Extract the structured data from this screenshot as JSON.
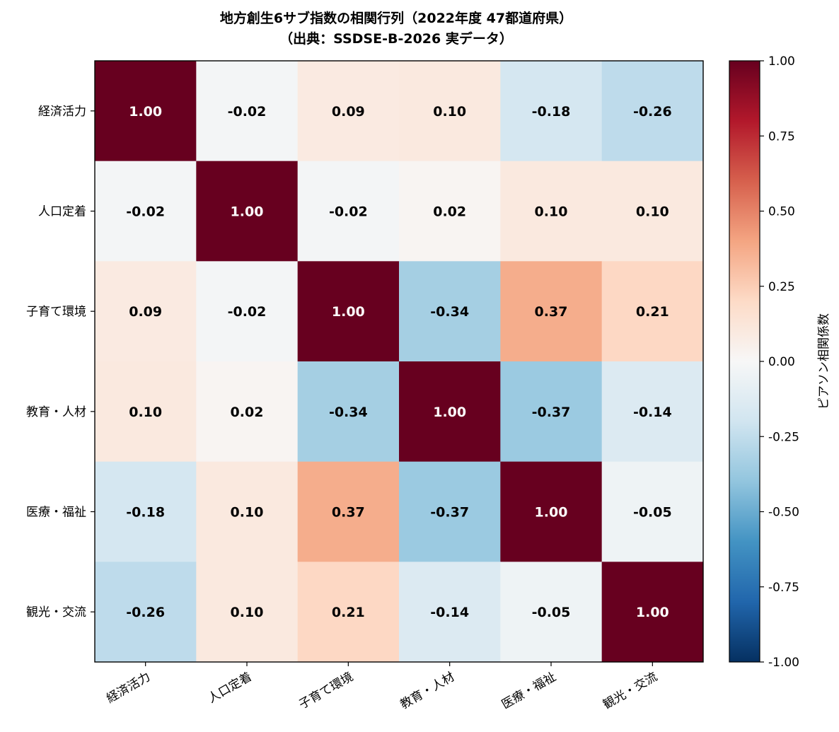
{
  "chart_data": {
    "type": "heatmap",
    "title": "地方創生6サブ指数の相関行列（2022年度 47都道府県）",
    "subtitle": "（出典：SSDSE-B-2026 実データ）",
    "row_labels": [
      "経済活力",
      "人口定着",
      "子育て環境",
      "教育・人材",
      "医療・福祉",
      "観光・交流"
    ],
    "col_labels": [
      "経済活力",
      "人口定着",
      "子育て環境",
      "教育・人材",
      "医療・福祉",
      "観光・交流"
    ],
    "values": [
      [
        1.0,
        -0.02,
        0.09,
        0.1,
        -0.18,
        -0.26
      ],
      [
        -0.02,
        1.0,
        -0.02,
        0.02,
        0.1,
        0.1
      ],
      [
        0.09,
        -0.02,
        1.0,
        -0.34,
        0.37,
        0.21
      ],
      [
        0.1,
        0.02,
        -0.34,
        1.0,
        -0.37,
        -0.14
      ],
      [
        -0.18,
        0.1,
        0.37,
        -0.37,
        1.0,
        -0.05
      ],
      [
        -0.26,
        0.1,
        0.21,
        -0.14,
        -0.05,
        1.0
      ]
    ],
    "value_labels": [
      [
        "1.00",
        "-0.02",
        "0.09",
        "0.10",
        "-0.18",
        "-0.26"
      ],
      [
        "-0.02",
        "1.00",
        "-0.02",
        "0.02",
        "0.10",
        "0.10"
      ],
      [
        "0.09",
        "-0.02",
        "1.00",
        "-0.34",
        "0.37",
        "0.21"
      ],
      [
        "0.10",
        "0.02",
        "-0.34",
        "1.00",
        "-0.37",
        "-0.14"
      ],
      [
        "-0.18",
        "0.10",
        "0.37",
        "-0.37",
        "1.00",
        "-0.05"
      ],
      [
        "-0.26",
        "0.10",
        "0.21",
        "-0.14",
        "-0.05",
        "1.00"
      ]
    ],
    "colormap": "RdBu_r",
    "vmin": -1.0,
    "vmax": 1.0,
    "colorbar": {
      "label": "ピアソン相関係数",
      "ticks": [
        1.0,
        0.75,
        0.5,
        0.25,
        0.0,
        -0.25,
        -0.5,
        -0.75,
        -1.0
      ],
      "tick_labels": [
        "1.00",
        "0.75",
        "0.50",
        "0.25",
        "0.00",
        "-0.25",
        "-0.50",
        "-0.75",
        "-1.00"
      ]
    }
  }
}
